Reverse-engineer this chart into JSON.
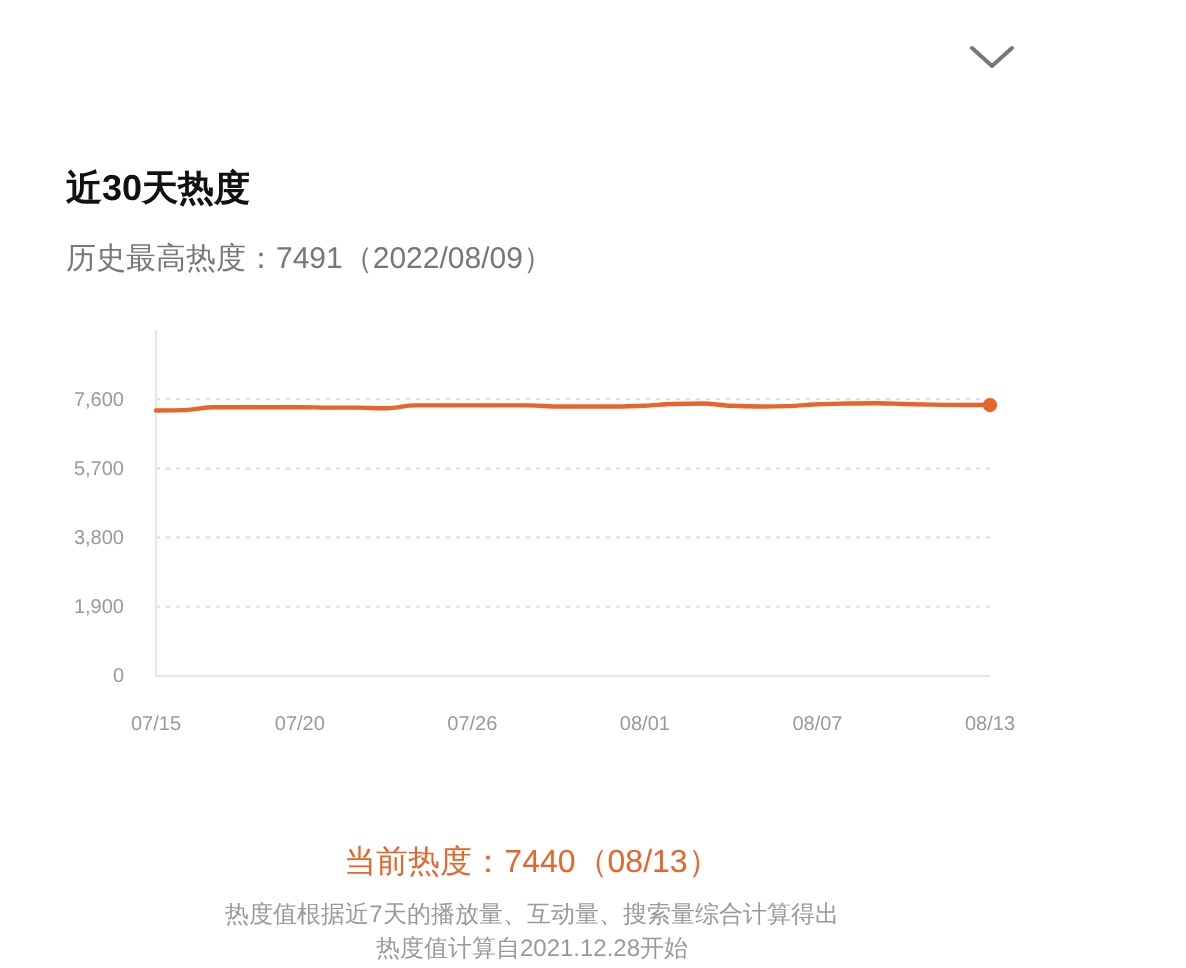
{
  "chart_data": {
    "type": "line",
    "title": "近30天热度",
    "subtitle": "历史最高热度：7491（2022/08/09）",
    "categories": [
      "07/15",
      null,
      null,
      null,
      null,
      "07/20",
      null,
      null,
      null,
      null,
      null,
      "07/26",
      null,
      null,
      null,
      null,
      null,
      "08/01",
      null,
      null,
      null,
      null,
      null,
      "08/07",
      null,
      null,
      null,
      null,
      null,
      "08/13"
    ],
    "series": [
      {
        "color": "#e8652a",
        "values": [
          7290,
          7300,
          7380,
          7380,
          7380,
          7380,
          7370,
          7370,
          7350,
          7430,
          7430,
          7430,
          7430,
          7430,
          7400,
          7400,
          7400,
          7420,
          7470,
          7480,
          7420,
          7400,
          7410,
          7460,
          7480,
          7490,
          7470,
          7450,
          7440,
          7440
        ]
      },
      {
        "type": "scatter",
        "color": "#e8652a",
        "marker": "circle",
        "values": [
          null,
          null,
          null,
          null,
          null,
          null,
          null,
          null,
          null,
          null,
          null,
          null,
          null,
          null,
          null,
          null,
          null,
          null,
          null,
          null,
          null,
          null,
          null,
          null,
          null,
          null,
          null,
          null,
          null,
          7440
        ]
      }
    ],
    "ylim": [
      0,
      9500
    ],
    "yticks": [
      0,
      {
        "value": 1900,
        "label": "1,900"
      },
      {
        "value": 3800,
        "label": "3,800"
      },
      {
        "value": 5700,
        "label": "5,700"
      },
      {
        "value": 7600,
        "label": "7,600"
      }
    ],
    "grid": "y",
    "annotations": [
      "当前热度：7440（08/13）",
      "热度值根据近7天的播放量、互动量、搜索量综合计算得出",
      "热度值计算自2021.12.28开始"
    ]
  }
}
